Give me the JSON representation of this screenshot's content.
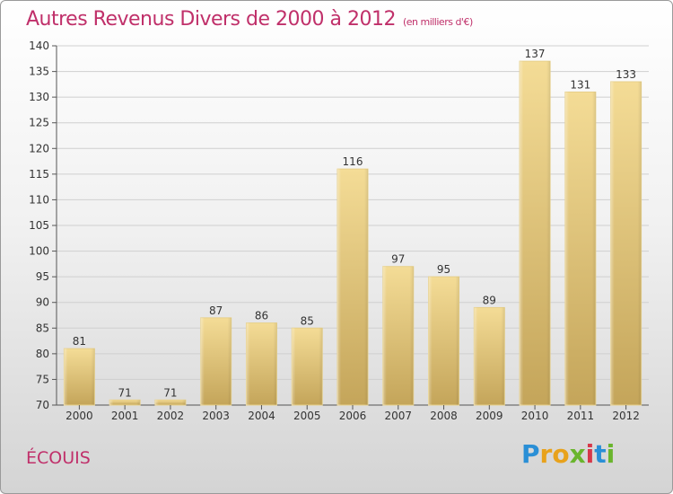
{
  "header": {
    "title": "Autres Revenus Divers de 2000 à 2012",
    "unit": "(en milliers d'€)"
  },
  "location": "ÉCOUIS",
  "brand": {
    "letters": [
      "P",
      "r",
      "o",
      "x",
      "i",
      "t",
      "i"
    ]
  },
  "colors": {
    "title": "#c0306a",
    "bar_light": "#f4dc96",
    "bar_dark": "#c4a55a",
    "grid": "#cfcfcf"
  },
  "chart_data": {
    "type": "bar",
    "title": "Autres Revenus Divers de 2000 à 2012",
    "subtitle": "(en milliers d'€)",
    "categories": [
      "2000",
      "2001",
      "2002",
      "2003",
      "2004",
      "2005",
      "2006",
      "2007",
      "2008",
      "2009",
      "2010",
      "2011",
      "2012"
    ],
    "values": [
      81,
      71,
      71,
      87,
      86,
      85,
      116,
      97,
      95,
      89,
      137,
      131,
      133
    ],
    "ylim": [
      70,
      140
    ],
    "yticks": [
      70,
      75,
      80,
      85,
      90,
      95,
      100,
      105,
      110,
      115,
      120,
      125,
      130,
      135,
      140
    ],
    "grid": true,
    "legend": "none"
  }
}
